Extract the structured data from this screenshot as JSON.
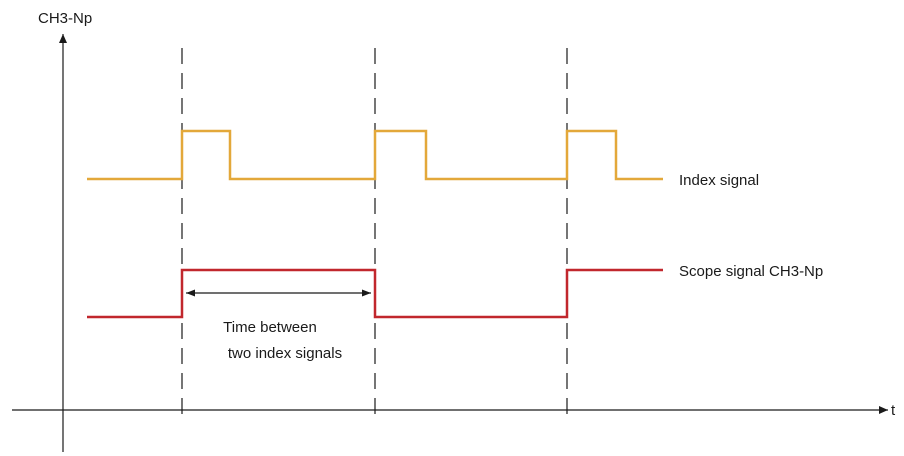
{
  "axes": {
    "y_label": "CH3-Np",
    "x_label": "t"
  },
  "signals": {
    "index": {
      "label": "Index signal",
      "color": "#e3a83a"
    },
    "scope": {
      "label": "Scope signal CH3-Np",
      "color": "#c1272d"
    }
  },
  "annotation": {
    "line1": "Time between",
    "line2": "two index signals"
  },
  "colors": {
    "axis": "#1a1a1a",
    "guide": "#1a1a1a"
  }
}
